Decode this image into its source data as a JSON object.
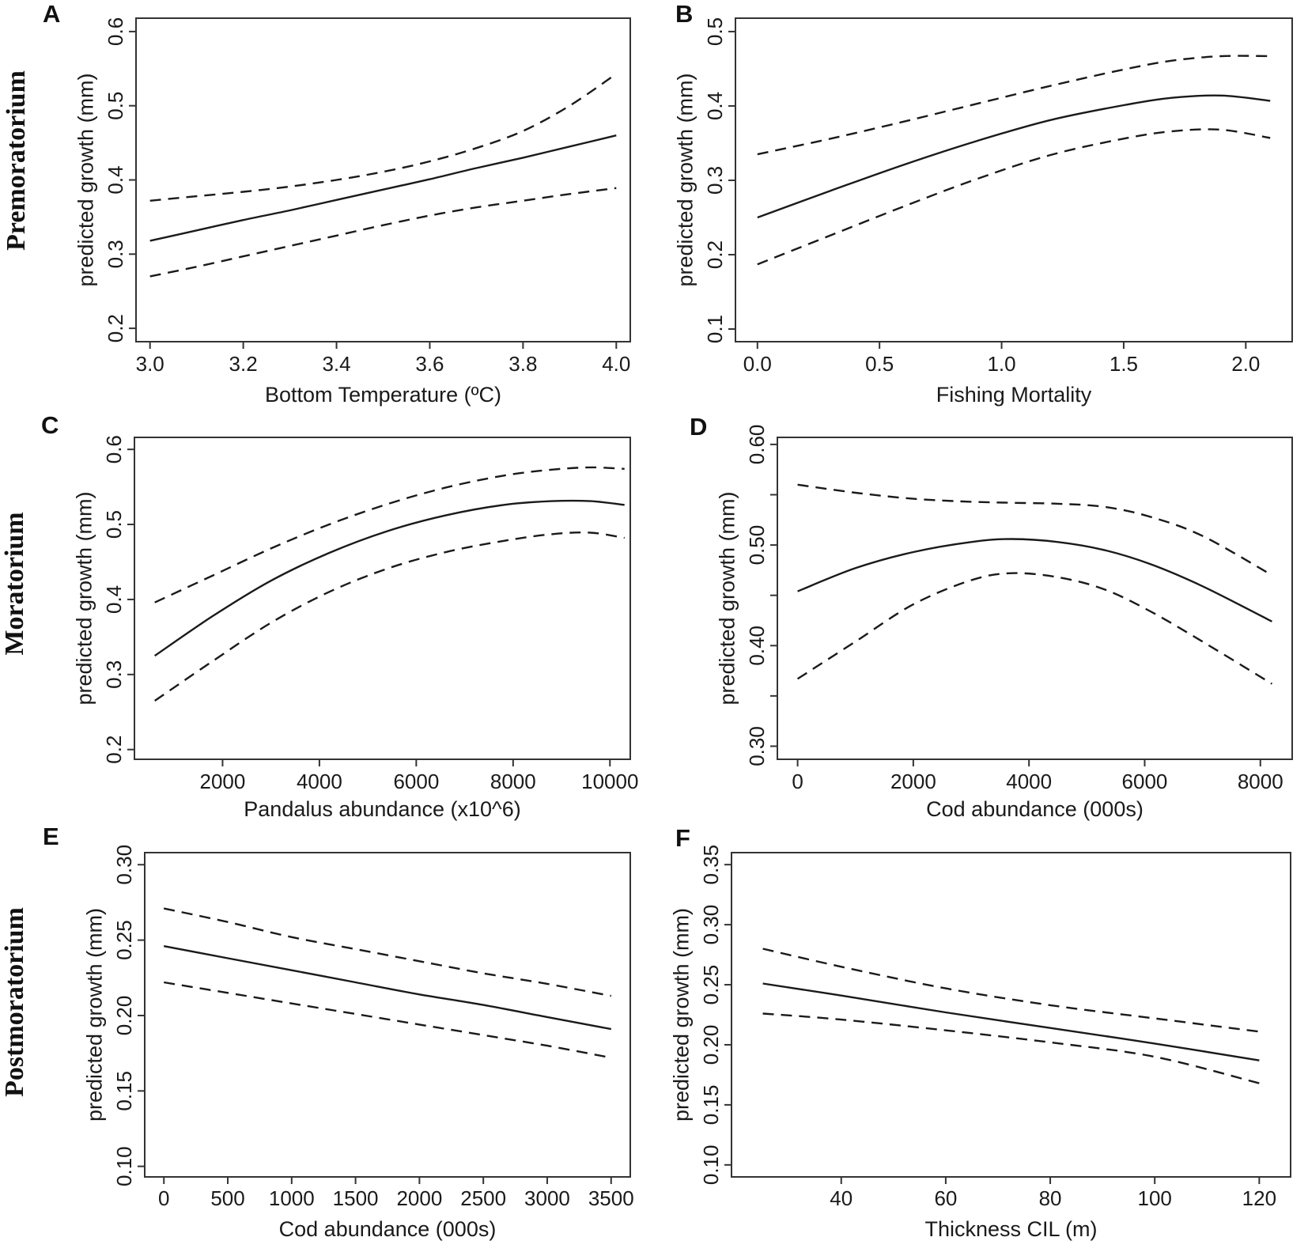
{
  "figure": {
    "background": "#ffffff",
    "line_color": "#1a1a1a",
    "axis_color": "#333333",
    "y_axis_label": "predicted growth (mm)",
    "row_labels": [
      "Premoratorium",
      "Moratorium",
      "Postmoratorium"
    ]
  },
  "chart_data": [
    {
      "panel_letter": "A",
      "type": "line",
      "row_label": "Premoratorium",
      "xlabel": "Bottom Temperature (ºC)",
      "ylabel": "predicted growth (mm)",
      "xlim": [
        2.97,
        4.03
      ],
      "ylim": [
        0.182,
        0.618
      ],
      "x_tick_values": [
        3.0,
        3.2,
        3.4,
        3.6,
        3.8,
        4.0
      ],
      "x_tick_labels": [
        "3.0",
        "3.2",
        "3.4",
        "3.6",
        "3.8",
        "4.0"
      ],
      "y_tick_values": [
        0.2,
        0.3,
        0.4,
        0.5,
        0.6
      ],
      "y_tick_labels": [
        "0.2",
        "0.3",
        "0.4",
        "0.5",
        "0.6"
      ],
      "y_minor_tick_values": [],
      "series": [
        {
          "name": "fitted mean",
          "style": "solid",
          "x": [
            3.0,
            3.1,
            3.2,
            3.3,
            3.4,
            3.5,
            3.6,
            3.7,
            3.8,
            3.9,
            4.0
          ],
          "y": [
            0.318,
            0.332,
            0.346,
            0.359,
            0.373,
            0.387,
            0.401,
            0.416,
            0.43,
            0.445,
            0.46
          ]
        },
        {
          "name": "upper confidence limit",
          "style": "dashed",
          "x": [
            3.0,
            3.1,
            3.2,
            3.3,
            3.4,
            3.5,
            3.6,
            3.7,
            3.8,
            3.9,
            4.0
          ],
          "y": [
            0.372,
            0.378,
            0.384,
            0.391,
            0.4,
            0.411,
            0.425,
            0.443,
            0.466,
            0.5,
            0.543
          ]
        },
        {
          "name": "lower confidence limit",
          "style": "dashed",
          "x": [
            3.0,
            3.1,
            3.2,
            3.3,
            3.4,
            3.5,
            3.6,
            3.7,
            3.8,
            3.9,
            4.0
          ],
          "y": [
            0.27,
            0.283,
            0.297,
            0.311,
            0.325,
            0.339,
            0.352,
            0.363,
            0.372,
            0.381,
            0.389
          ]
        }
      ]
    },
    {
      "panel_letter": "B",
      "type": "line",
      "row_label": "Premoratorium",
      "xlabel": "Fishing Mortality",
      "ylabel": "predicted growth (mm)",
      "xlim": [
        -0.09,
        2.19
      ],
      "ylim": [
        0.083,
        0.518
      ],
      "x_tick_values": [
        0.0,
        0.5,
        1.0,
        1.5,
        2.0
      ],
      "x_tick_labels": [
        "0.0",
        "0.5",
        "1.0",
        "1.5",
        "2.0"
      ],
      "y_tick_values": [
        0.1,
        0.2,
        0.3,
        0.4,
        0.5
      ],
      "y_tick_labels": [
        "0.1",
        "0.2",
        "0.3",
        "0.4",
        "0.5"
      ],
      "y_minor_tick_values": [],
      "series": [
        {
          "name": "fitted mean",
          "style": "solid",
          "x": [
            0.0,
            0.3,
            0.6,
            0.9,
            1.2,
            1.5,
            1.7,
            1.9,
            2.1
          ],
          "y": [
            0.25,
            0.286,
            0.321,
            0.353,
            0.381,
            0.401,
            0.411,
            0.414,
            0.407
          ]
        },
        {
          "name": "upper confidence limit",
          "style": "dashed",
          "x": [
            0.0,
            0.3,
            0.6,
            0.9,
            1.2,
            1.5,
            1.7,
            1.9,
            2.1
          ],
          "y": [
            0.335,
            0.356,
            0.379,
            0.403,
            0.427,
            0.449,
            0.461,
            0.467,
            0.467
          ]
        },
        {
          "name": "lower confidence limit",
          "style": "dashed",
          "x": [
            0.0,
            0.3,
            0.6,
            0.9,
            1.2,
            1.5,
            1.7,
            1.9,
            2.1
          ],
          "y": [
            0.187,
            0.226,
            0.265,
            0.302,
            0.334,
            0.356,
            0.366,
            0.368,
            0.357
          ]
        }
      ]
    },
    {
      "panel_letter": "C",
      "type": "line",
      "row_label": "Moratorium",
      "xlabel": "Pandalus abundance (x10^6)",
      "ylabel": "predicted growth (mm)",
      "xlim": [
        180,
        10420
      ],
      "ylim": [
        0.187,
        0.616
      ],
      "x_tick_values": [
        2000,
        4000,
        6000,
        8000,
        10000
      ],
      "x_tick_labels": [
        "2000",
        "4000",
        "6000",
        "8000",
        "10000"
      ],
      "y_tick_values": [
        0.2,
        0.3,
        0.4,
        0.5,
        0.6
      ],
      "y_tick_labels": [
        "0.2",
        "0.3",
        "0.4",
        "0.5",
        "0.6"
      ],
      "y_minor_tick_values": [],
      "series": [
        {
          "name": "fitted mean",
          "style": "solid",
          "x": [
            600,
            1800,
            3000,
            4200,
            5400,
            6600,
            7800,
            8800,
            9600,
            10300
          ],
          "y": [
            0.325,
            0.378,
            0.425,
            0.462,
            0.491,
            0.512,
            0.526,
            0.531,
            0.531,
            0.526
          ]
        },
        {
          "name": "upper confidence limit",
          "style": "dashed",
          "x": [
            600,
            1800,
            3000,
            4200,
            5400,
            6600,
            7800,
            8800,
            9600,
            10300
          ],
          "y": [
            0.396,
            0.432,
            0.468,
            0.5,
            0.527,
            0.549,
            0.565,
            0.573,
            0.576,
            0.574
          ]
        },
        {
          "name": "lower confidence limit",
          "style": "dashed",
          "x": [
            600,
            1800,
            3000,
            4200,
            5400,
            6600,
            7800,
            8800,
            9600,
            10300
          ],
          "y": [
            0.265,
            0.318,
            0.369,
            0.41,
            0.441,
            0.463,
            0.478,
            0.487,
            0.489,
            0.482
          ]
        }
      ]
    },
    {
      "panel_letter": "D",
      "type": "line",
      "row_label": "Moratorium",
      "xlabel": "Cod abundance (000s)",
      "ylabel": "predicted growth (mm)",
      "xlim": [
        -350,
        8550
      ],
      "ylim": [
        0.287,
        0.607
      ],
      "x_tick_values": [
        0,
        2000,
        4000,
        6000,
        8000
      ],
      "x_tick_labels": [
        "0",
        "2000",
        "4000",
        "6000",
        "8000"
      ],
      "y_tick_values": [
        0.3,
        0.4,
        0.5,
        0.6
      ],
      "y_tick_labels": [
        "0.30",
        "0.40",
        "0.50",
        "0.60"
      ],
      "y_minor_tick_values": [
        0.35,
        0.45,
        0.55
      ],
      "series": [
        {
          "name": "fitted mean",
          "style": "solid",
          "x": [
            0,
            1000,
            2000,
            3000,
            3700,
            4500,
            5300,
            6100,
            7000,
            8200
          ],
          "y": [
            0.454,
            0.477,
            0.493,
            0.503,
            0.506,
            0.503,
            0.495,
            0.481,
            0.459,
            0.424
          ]
        },
        {
          "name": "upper confidence limit",
          "style": "dashed",
          "x": [
            0,
            1000,
            2000,
            3000,
            3700,
            4500,
            5300,
            6100,
            7000,
            8200
          ],
          "y": [
            0.56,
            0.552,
            0.546,
            0.543,
            0.542,
            0.541,
            0.538,
            0.528,
            0.509,
            0.47
          ]
        },
        {
          "name": "lower confidence limit",
          "style": "dashed",
          "x": [
            0,
            1000,
            2000,
            3000,
            3700,
            4500,
            5300,
            6100,
            7000,
            8200
          ],
          "y": [
            0.367,
            0.404,
            0.441,
            0.465,
            0.472,
            0.468,
            0.456,
            0.434,
            0.404,
            0.362
          ]
        }
      ]
    },
    {
      "panel_letter": "E",
      "type": "line",
      "row_label": "Postmoratorium",
      "xlabel": "Cod abundance (000s)",
      "ylabel": "predicted growth (mm)",
      "xlim": [
        -150,
        3650
      ],
      "ylim": [
        0.093,
        0.308
      ],
      "x_tick_values": [
        0,
        500,
        1000,
        1500,
        2000,
        2500,
        3000,
        3500
      ],
      "x_tick_labels": [
        "0",
        "500",
        "1000",
        "1500",
        "2000",
        "2500",
        "3000",
        "3500"
      ],
      "y_tick_values": [
        0.1,
        0.15,
        0.2,
        0.25,
        0.3
      ],
      "y_tick_labels": [
        "0.10",
        "0.15",
        "0.20",
        "0.25",
        "0.30"
      ],
      "y_minor_tick_values": [],
      "series": [
        {
          "name": "fitted mean",
          "style": "solid",
          "x": [
            0,
            500,
            1000,
            1500,
            2000,
            2500,
            3000,
            3500
          ],
          "y": [
            0.246,
            0.238,
            0.23,
            0.222,
            0.214,
            0.207,
            0.199,
            0.191
          ]
        },
        {
          "name": "upper confidence limit",
          "style": "dashed",
          "x": [
            0,
            500,
            1000,
            1500,
            2000,
            2500,
            3000,
            3500
          ],
          "y": [
            0.271,
            0.262,
            0.252,
            0.244,
            0.236,
            0.228,
            0.221,
            0.213
          ]
        },
        {
          "name": "lower confidence limit",
          "style": "dashed",
          "x": [
            0,
            500,
            1000,
            1500,
            2000,
            2500,
            3000,
            3500
          ],
          "y": [
            0.222,
            0.215,
            0.208,
            0.201,
            0.194,
            0.187,
            0.18,
            0.172
          ]
        }
      ]
    },
    {
      "panel_letter": "F",
      "type": "line",
      "row_label": "Postmoratorium",
      "xlabel": "Thickness CIL (m)",
      "ylabel": "predicted growth (mm)",
      "xlim": [
        19,
        126
      ],
      "ylim": [
        0.09,
        0.36
      ],
      "x_tick_values": [
        40,
        60,
        80,
        100,
        120
      ],
      "x_tick_labels": [
        "40",
        "60",
        "80",
        "100",
        "120"
      ],
      "y_tick_values": [
        0.1,
        0.15,
        0.2,
        0.25,
        0.3,
        0.35
      ],
      "y_tick_labels": [
        "0.10",
        "0.15",
        "0.20",
        "0.25",
        "0.30",
        "0.35"
      ],
      "y_minor_tick_values": [],
      "series": [
        {
          "name": "fitted mean",
          "style": "solid",
          "x": [
            25,
            40,
            60,
            80,
            100,
            120
          ],
          "y": [
            0.251,
            0.241,
            0.227,
            0.214,
            0.201,
            0.187
          ]
        },
        {
          "name": "upper confidence limit",
          "style": "dashed",
          "x": [
            25,
            40,
            60,
            80,
            100,
            120
          ],
          "y": [
            0.28,
            0.265,
            0.247,
            0.233,
            0.222,
            0.211
          ]
        },
        {
          "name": "lower confidence limit",
          "style": "dashed",
          "x": [
            25,
            40,
            60,
            80,
            100,
            120
          ],
          "y": [
            0.226,
            0.221,
            0.212,
            0.202,
            0.19,
            0.168
          ]
        }
      ]
    }
  ]
}
